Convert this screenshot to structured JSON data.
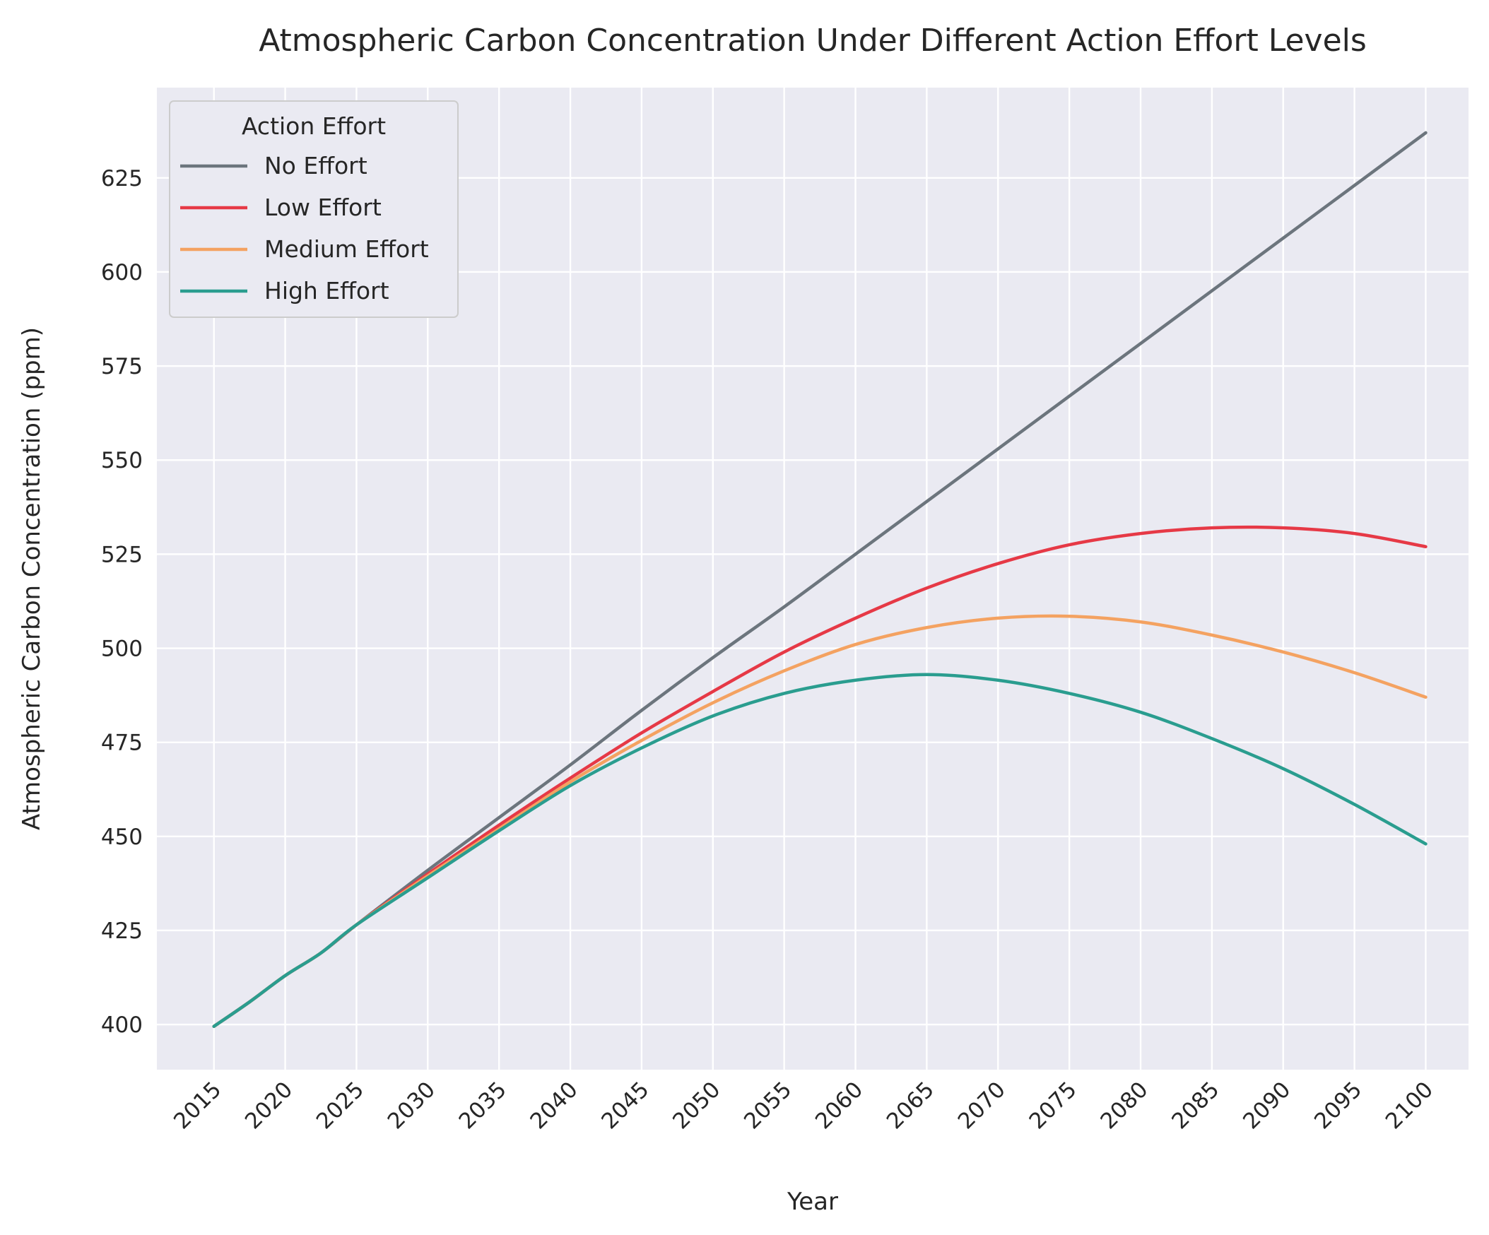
{
  "chart_data": {
    "type": "line",
    "title": "Atmospheric Carbon Concentration Under Different Action Effort Levels",
    "xlabel": "Year",
    "ylabel": "Atmospheric Carbon Concentration (ppm)",
    "xlim": [
      2011,
      2103
    ],
    "ylim": [
      388,
      649
    ],
    "x_ticks": [
      2015,
      2020,
      2025,
      2030,
      2035,
      2040,
      2045,
      2050,
      2055,
      2060,
      2065,
      2070,
      2075,
      2080,
      2085,
      2090,
      2095,
      2100
    ],
    "y_ticks": [
      400,
      425,
      450,
      475,
      500,
      525,
      550,
      575,
      600,
      625
    ],
    "grid": true,
    "legend": {
      "title": "Action Effort",
      "placement": "top-left"
    },
    "x": [
      2015,
      2017.5,
      2020,
      2022.5,
      2025,
      2030,
      2035,
      2040,
      2045,
      2050,
      2055,
      2060,
      2065,
      2070,
      2075,
      2080,
      2085,
      2090,
      2095,
      2100
    ],
    "series": [
      {
        "name": "No Effort",
        "color": "#6c757d",
        "values": [
          399.5,
          406,
          413,
          419,
          426.5,
          441,
          455,
          469,
          483.5,
          497.5,
          511,
          525,
          539,
          553,
          567,
          581,
          595,
          609,
          623,
          637
        ]
      },
      {
        "name": "Low Effort",
        "color": "#e63946",
        "values": [
          399.5,
          406,
          413,
          419,
          426.5,
          440,
          453,
          465.5,
          477.5,
          488.5,
          499,
          508,
          516,
          522.5,
          527.5,
          530.5,
          532,
          532,
          530.5,
          527
        ]
      },
      {
        "name": "Medium Effort",
        "color": "#f4a261",
        "values": [
          399.5,
          406,
          413,
          419,
          426.5,
          439.5,
          452,
          464.5,
          475.5,
          485.5,
          494,
          501,
          505.5,
          508,
          508.5,
          507,
          503.5,
          499,
          493.5,
          487
        ]
      },
      {
        "name": "High Effort",
        "color": "#2a9d8f",
        "values": [
          399.5,
          406,
          413,
          419,
          426.5,
          439,
          451.5,
          463.5,
          473.5,
          482,
          488,
          491.5,
          493,
          491.5,
          488,
          483,
          476,
          468,
          458.5,
          448
        ]
      }
    ]
  }
}
